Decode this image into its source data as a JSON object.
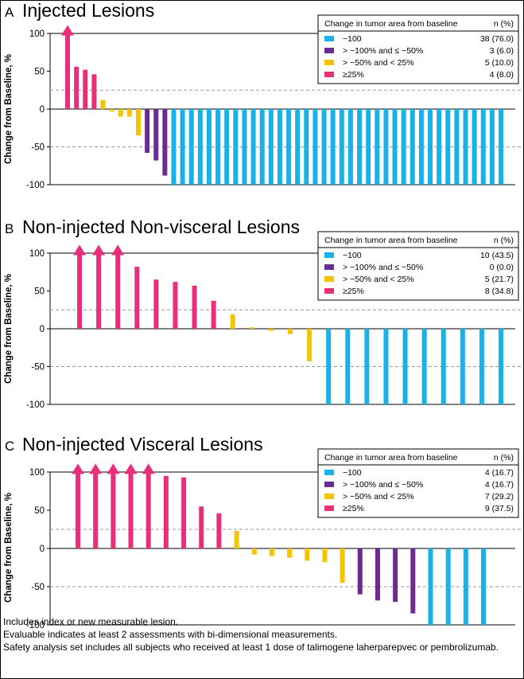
{
  "colors": {
    "cyan": "#1ab0e8",
    "purple": "#6a2c91",
    "yellow": "#f5c400",
    "pink": "#e8307a",
    "ref_line": "#999999"
  },
  "chart_data": [
    {
      "type": "bar",
      "letter": "A",
      "title": "Injected Lesions",
      "ylabel": "Change from Baseline, %",
      "ylim": [
        -100,
        100
      ],
      "yticks": [
        "100",
        "50",
        "0",
        "-50",
        "-100"
      ],
      "reference_lines": [
        25,
        -50
      ],
      "legend": {
        "header": "Change in tumor area from baseline",
        "n_header": "n (%)",
        "entries": [
          {
            "label": "−100",
            "value": "38 (76.0)",
            "color": "#1ab0e8"
          },
          {
            "label": "> −100% and ≤ −50%",
            "value": "3 (6.0)",
            "color": "#6a2c91"
          },
          {
            "label": "> −50% and < 25%",
            "value": "5 (10.0)",
            "color": "#f5c400"
          },
          {
            "label": "≥25%",
            "value": "4 (8.0)",
            "color": "#e8307a"
          }
        ]
      },
      "values": [
        110,
        56,
        52,
        46,
        12,
        -3,
        -10,
        -10,
        -35,
        -58,
        -68,
        -88,
        -100,
        -100,
        -100,
        -100,
        -100,
        -100,
        -100,
        -100,
        -100,
        -100,
        -100,
        -100,
        -100,
        -100,
        -100,
        -100,
        -100,
        -100,
        -100,
        -100,
        -100,
        -100,
        -100,
        -100,
        -100,
        -100,
        -100,
        -100,
        -100,
        -100,
        -100,
        -100,
        -100,
        -100,
        -100,
        -100,
        -100,
        -100
      ],
      "arrows": [
        true,
        false,
        false,
        false,
        false,
        false,
        false,
        false,
        false,
        false,
        false,
        false,
        false,
        false,
        false,
        false,
        false,
        false,
        false,
        false,
        false,
        false,
        false,
        false,
        false,
        false,
        false,
        false,
        false,
        false,
        false,
        false,
        false,
        false,
        false,
        false,
        false,
        false,
        false,
        false,
        false,
        false,
        false,
        false,
        false,
        false,
        false,
        false,
        false,
        false
      ]
    },
    {
      "type": "bar",
      "letter": "B",
      "title": "Non-injected Non-visceral Lesions",
      "ylabel": "Change from Baseline, %",
      "ylim": [
        -100,
        100
      ],
      "yticks": [
        "100",
        "50",
        "0",
        "-50",
        "-100"
      ],
      "reference_lines": [
        25,
        -50
      ],
      "legend": {
        "header": "Change in tumor area from baseline",
        "n_header": "n (%)",
        "entries": [
          {
            "label": "−100",
            "value": "10 (43.5)",
            "color": "#1ab0e8"
          },
          {
            "label": "> −100% and ≤ −50%",
            "value": "0 (0.0)",
            "color": "#6a2c91"
          },
          {
            "label": "> −50% and < 25%",
            "value": "5 (21.7)",
            "color": "#f5c400"
          },
          {
            "label": "≥25%",
            "value": "8 (34.8)",
            "color": "#e8307a"
          }
        ]
      },
      "values": [
        110,
        110,
        110,
        82,
        65,
        62,
        57,
        37,
        19,
        2,
        -3,
        -7,
        -43,
        -100,
        -100,
        -100,
        -100,
        -100,
        -100,
        -100,
        -100,
        -100,
        -100
      ],
      "arrows": [
        true,
        true,
        true,
        false,
        false,
        false,
        false,
        false,
        false,
        false,
        false,
        false,
        false,
        false,
        false,
        false,
        false,
        false,
        false,
        false,
        false,
        false,
        false
      ]
    },
    {
      "type": "bar",
      "letter": "C",
      "title": "Non-injected Visceral Lesions",
      "ylabel": "Change from Baseline, %",
      "ylim": [
        -100,
        100
      ],
      "yticks": [
        "100",
        "50",
        "0",
        "-50",
        "-100"
      ],
      "reference_lines": [
        25,
        -50
      ],
      "legend": {
        "header": "Change in tumor area from baseline",
        "n_header": "n (%)",
        "entries": [
          {
            "label": "−100",
            "value": "4 (16.7)",
            "color": "#1ab0e8"
          },
          {
            "label": "> −100% and ≤ −50%",
            "value": "4 (16.7)",
            "color": "#6a2c91"
          },
          {
            "label": "> −50% and < 25%",
            "value": "7 (29.2)",
            "color": "#f5c400"
          },
          {
            "label": "≥25%",
            "value": "9 (37.5)",
            "color": "#e8307a"
          }
        ]
      },
      "values": [
        110,
        110,
        110,
        110,
        110,
        95,
        93,
        55,
        46,
        23,
        -8,
        -10,
        -12,
        -16,
        -18,
        -45,
        -60,
        -68,
        -70,
        -85,
        -100,
        -100,
        -100,
        -100
      ],
      "arrows": [
        true,
        true,
        true,
        true,
        true,
        false,
        false,
        false,
        false,
        false,
        false,
        false,
        false,
        false,
        false,
        false,
        false,
        false,
        false,
        false,
        false,
        false,
        false,
        false
      ]
    }
  ],
  "footnotes": [
    "Includes index or new measurable lesion.",
    "Evaluable indicates at least 2 assessments with bi-dimensional measurements.",
    "Safety analysis set includes all subjects who received at least 1 dose of talimogene laherparepvec or pembrolizumab."
  ]
}
